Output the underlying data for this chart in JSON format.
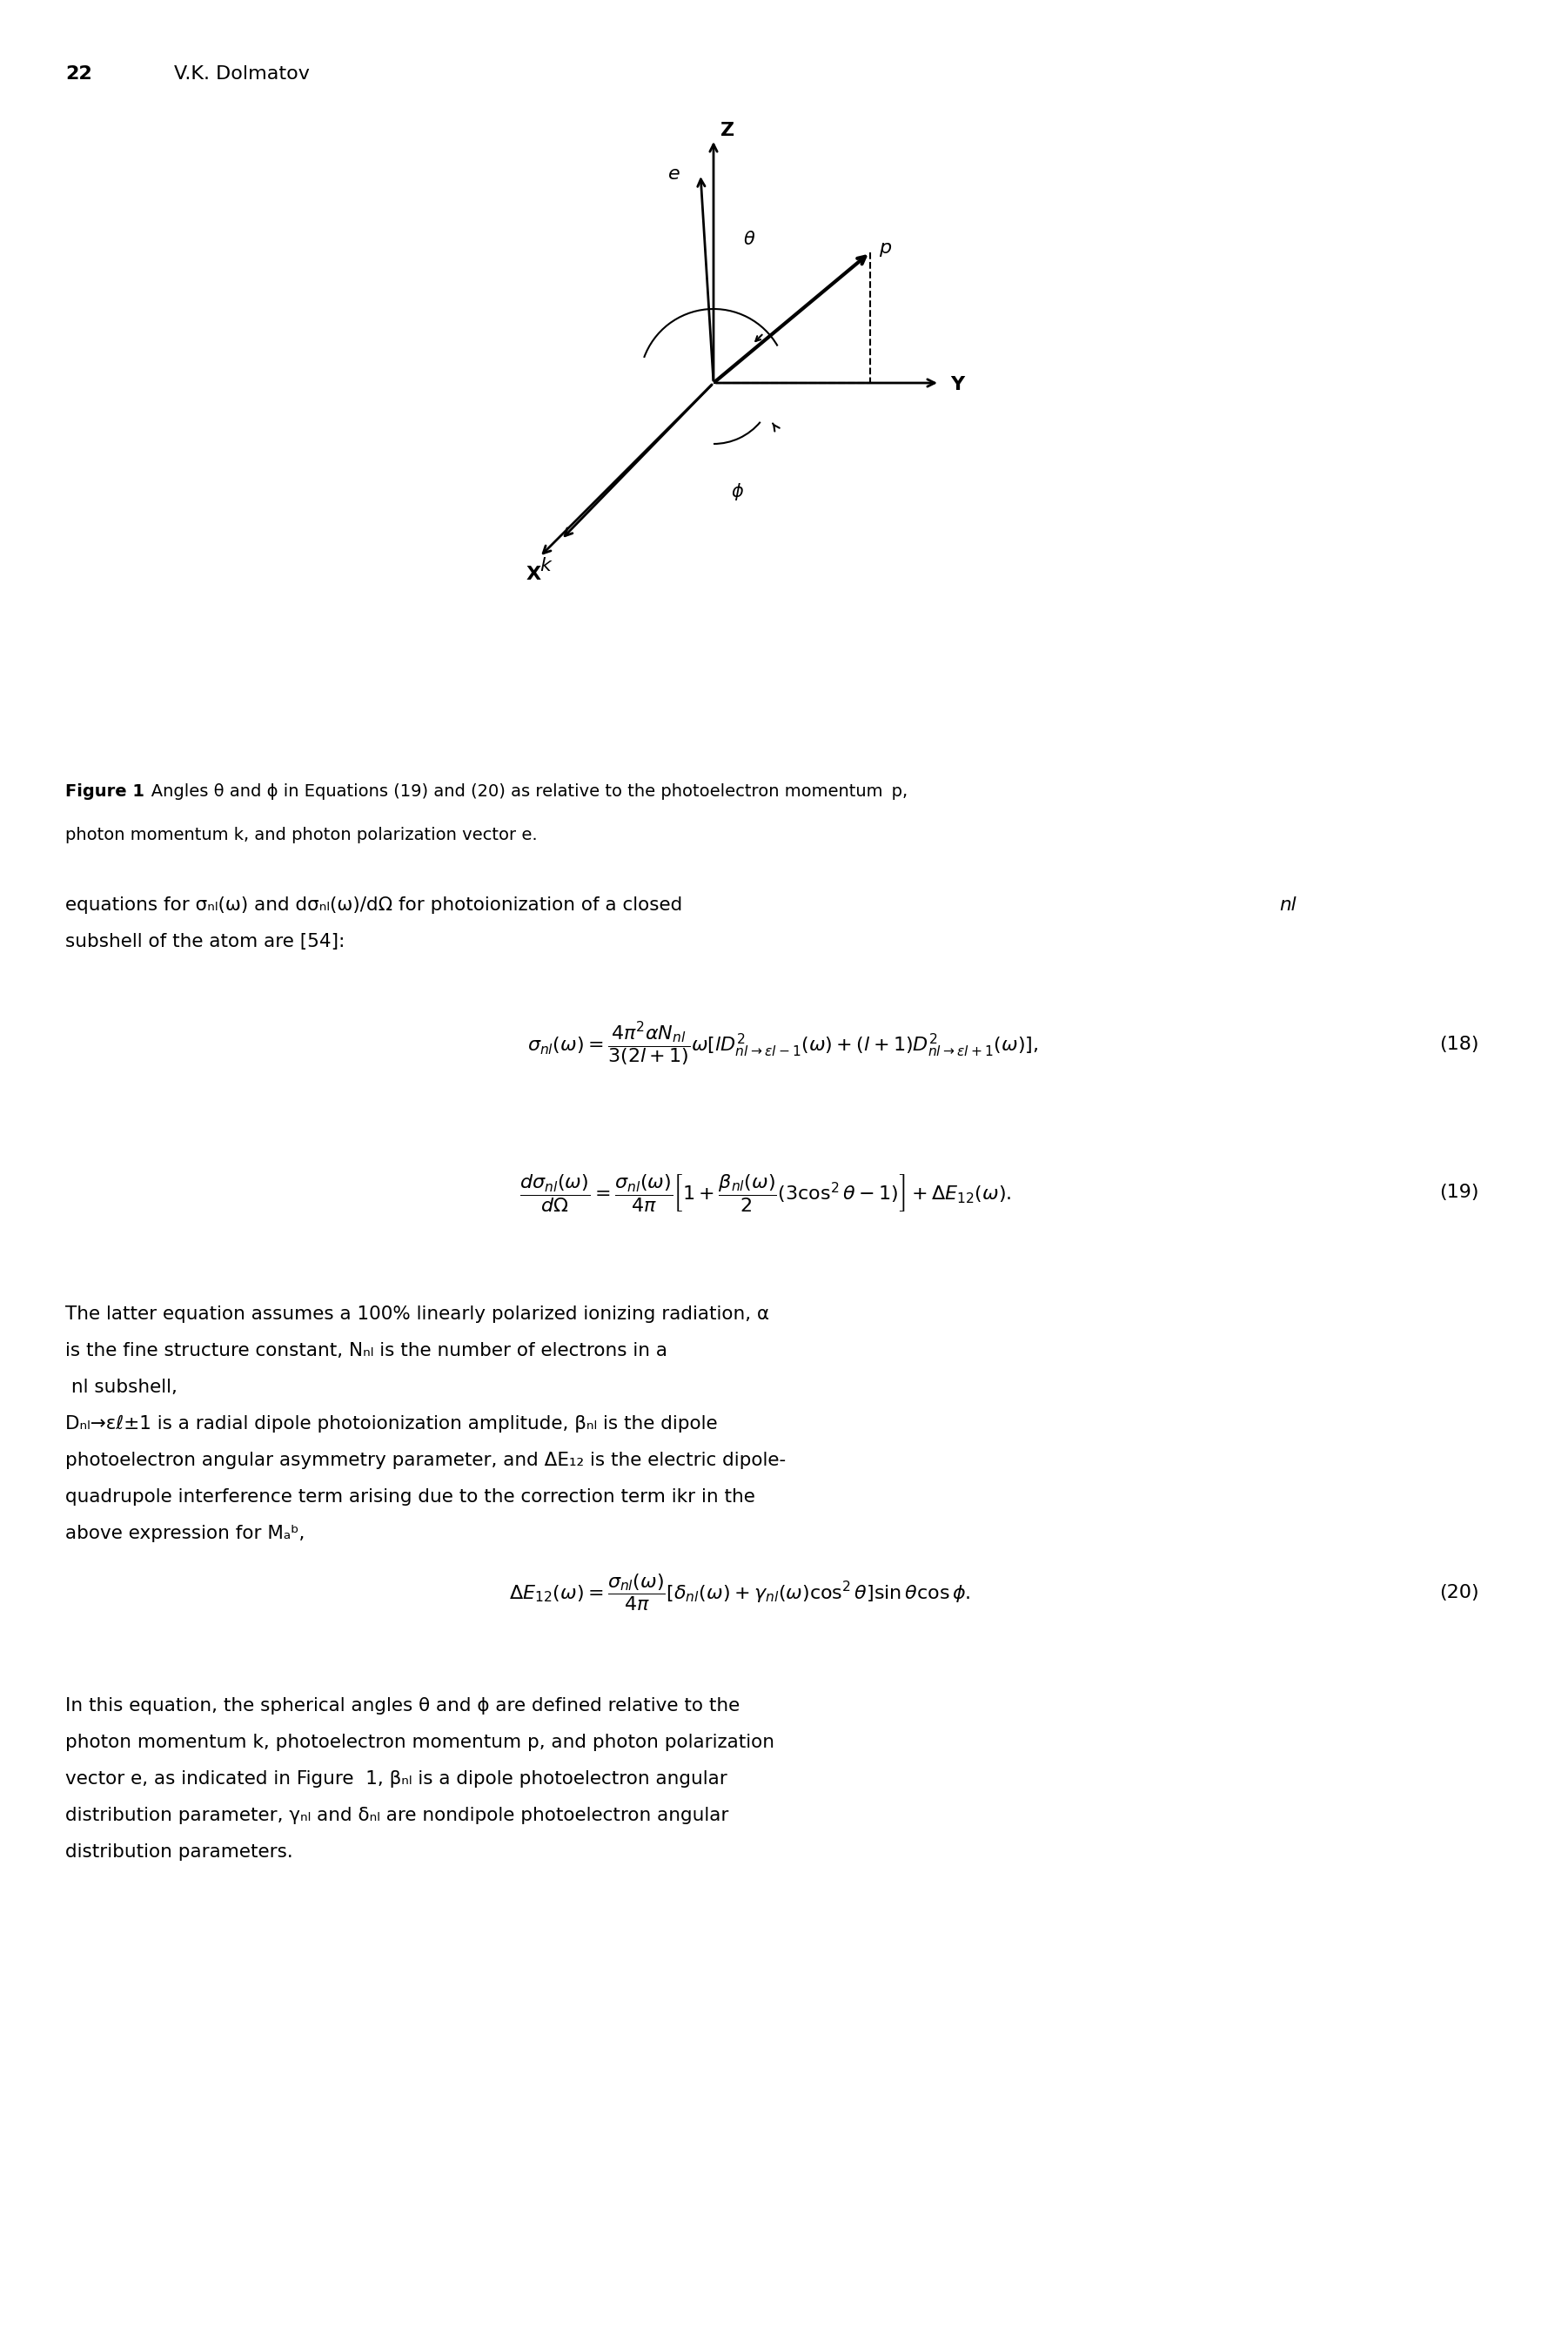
{
  "page_number": "22",
  "author": "V.K. Dolmatov",
  "figure_caption_bold": "Figure 1",
  "figure_caption_normal": "  Angles θ and ϕ in Equations (19) and (20) as relative to the photoelectron momentum ",
  "figure_caption_bold2": "p",
  "figure_caption_normal2": ",\nphoton momentum ",
  "figure_caption_bold3": "k",
  "figure_caption_normal3": ", and photon polarization vector ",
  "figure_caption_bold4": "e",
  "figure_caption_normal4": ".",
  "bg_color": "#ffffff",
  "text_color": "#000000",
  "eq18": "$\\sigma_{nl}(\\omega) = \\dfrac{4\\pi^2\\alpha N_{nl}}{3(2l+1)}\\omega[lD^2_{nl\\rightarrow\\epsilon l-1}(\\omega) + (l+1)D^2_{nl\\rightarrow\\epsilon l+1}(\\omega)],$",
  "eq19": "$\\dfrac{d\\sigma_{nl}(\\omega)}{d\\Omega} = \\dfrac{\\sigma_{nl}(\\omega)}{4\\pi}\\left[1 + \\dfrac{\\beta_{nl}(\\omega)}{2}(3\\cos^2\\theta - 1)\\right] + \\Delta E_{12}(\\omega).$",
  "eq20": "$\\Delta E_{12}(\\omega) = \\dfrac{\\sigma_{nl}(\\omega)}{4\\pi}[\\delta_{nl}(\\omega) + \\gamma_{nl}(\\omega)\\cos^2\\theta]\\sin\\theta\\cos\\phi.$",
  "eq18_num": "(18)",
  "eq19_num": "(19)",
  "eq20_num": "(20)"
}
